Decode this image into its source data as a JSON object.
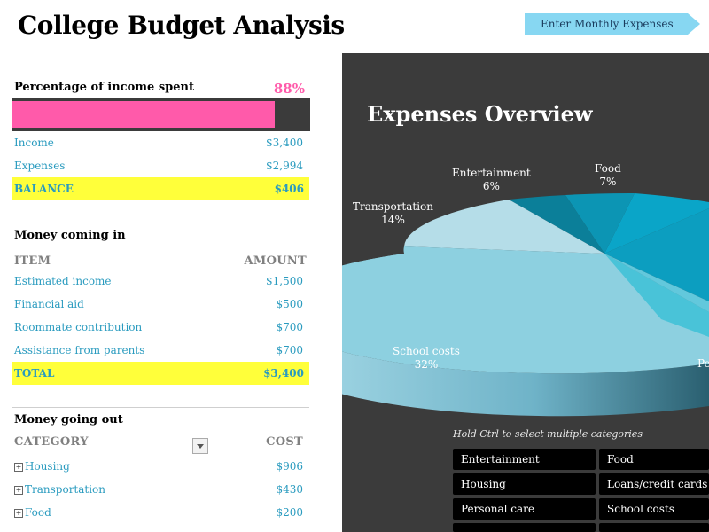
{
  "header": {
    "title": "College Budget Analysis",
    "enter_button_label": "Enter Monthly Expenses"
  },
  "summary": {
    "percent_label": "Percentage of income spent",
    "percent_value": "88%",
    "percent_fraction": 0.88,
    "income_label": "Income",
    "income_value": "$3,400",
    "expenses_label": "Expenses",
    "expenses_value": "$2,994",
    "balance_label": "BALANCE",
    "balance_value": "$406"
  },
  "income_section": {
    "title": "Money coming in",
    "col_item": "ITEM",
    "col_amount": "AMOUNT",
    "rows": [
      {
        "label": "Estimated income",
        "value": "$1,500"
      },
      {
        "label": "Financial aid",
        "value": "$500"
      },
      {
        "label": "Roommate contribution",
        "value": "$700"
      },
      {
        "label": "Assistance from parents",
        "value": "$700"
      }
    ],
    "total_label": "TOTAL",
    "total_value": "$3,400"
  },
  "expense_section": {
    "title": "Money going out",
    "col_category": "CATEGORY",
    "col_cost": "COST",
    "rows": [
      {
        "label": "Housing",
        "value": "$906"
      },
      {
        "label": "Transportation",
        "value": "$430"
      },
      {
        "label": "Food",
        "value": "$200"
      }
    ]
  },
  "chart": {
    "title": "Expenses Overview",
    "labels": [
      {
        "name": "Entertainment",
        "pct": "6%"
      },
      {
        "name": "Food",
        "pct": "7%"
      },
      {
        "name": "Transportation",
        "pct": "14%"
      },
      {
        "name": "School costs",
        "pct": "32%"
      },
      {
        "name": "Pe",
        "pct": ""
      }
    ]
  },
  "chart_data": {
    "type": "pie",
    "title": "Expenses Overview",
    "categories": [
      "Entertainment",
      "Food",
      "Transportation",
      "School costs"
    ],
    "values": [
      6,
      7,
      14,
      32
    ]
  },
  "slicer": {
    "hint": "Hold Ctrl to select multiple categories",
    "items": [
      "Entertainment",
      "Food",
      "Housing",
      "Loans/credit cards",
      "Personal care",
      "School costs"
    ]
  },
  "colors": {
    "accent_pink": "#ff5aaa",
    "highlight_yellow": "#ffff3a",
    "link_blue": "#2a9bbf",
    "panel_dark": "#3b3b3b"
  }
}
